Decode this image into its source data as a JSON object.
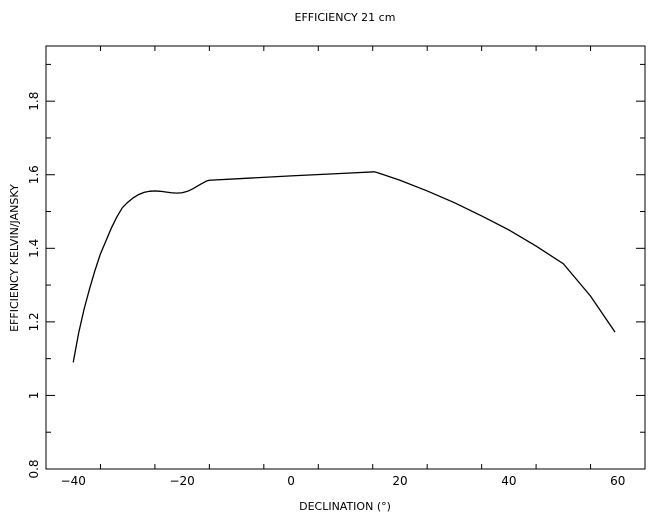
{
  "chart_data": {
    "type": "line",
    "title": "EFFICIENCY 21 cm",
    "xlabel": "DECLINATION (°)",
    "ylabel": "EFFICIENCY KELVIN/JANSKY",
    "xlim": [
      -45,
      65
    ],
    "ylim": [
      0.8,
      1.95
    ],
    "grid": false,
    "xticks": [
      -40,
      -20,
      0,
      20,
      40,
      60
    ],
    "xtick_labels": [
      "−40",
      "−20",
      "0",
      "20",
      "40",
      "60"
    ],
    "yticks": [
      0.8,
      1,
      1.2,
      1.4,
      1.6,
      1.8
    ],
    "ytick_labels": [
      "0.8",
      "1",
      "1.2",
      "1.4",
      "1.6",
      "1.8"
    ],
    "series": [
      {
        "x": [
          -40,
          -39,
          -38,
          -37,
          -36,
          -35,
          -34,
          -33,
          -32,
          -31,
          -30,
          -29,
          -28,
          -27,
          -26,
          -25,
          -24,
          -23,
          -22,
          -21,
          -20,
          -19,
          -18,
          -17,
          -16,
          -15.5,
          -15,
          -10,
          0,
          10,
          15.3,
          16,
          20,
          25,
          30,
          35,
          40,
          45,
          50,
          55,
          59.5
        ],
        "y": [
          1.09,
          1.17,
          1.235,
          1.29,
          1.34,
          1.385,
          1.42,
          1.455,
          1.485,
          1.51,
          1.525,
          1.537,
          1.546,
          1.552,
          1.555,
          1.556,
          1.555,
          1.553,
          1.551,
          1.55,
          1.551,
          1.555,
          1.562,
          1.571,
          1.579,
          1.583,
          1.585,
          1.589,
          1.597,
          1.604,
          1.608,
          1.605,
          1.585,
          1.556,
          1.524,
          1.488,
          1.45,
          1.406,
          1.358,
          1.27,
          1.172
        ]
      }
    ]
  }
}
